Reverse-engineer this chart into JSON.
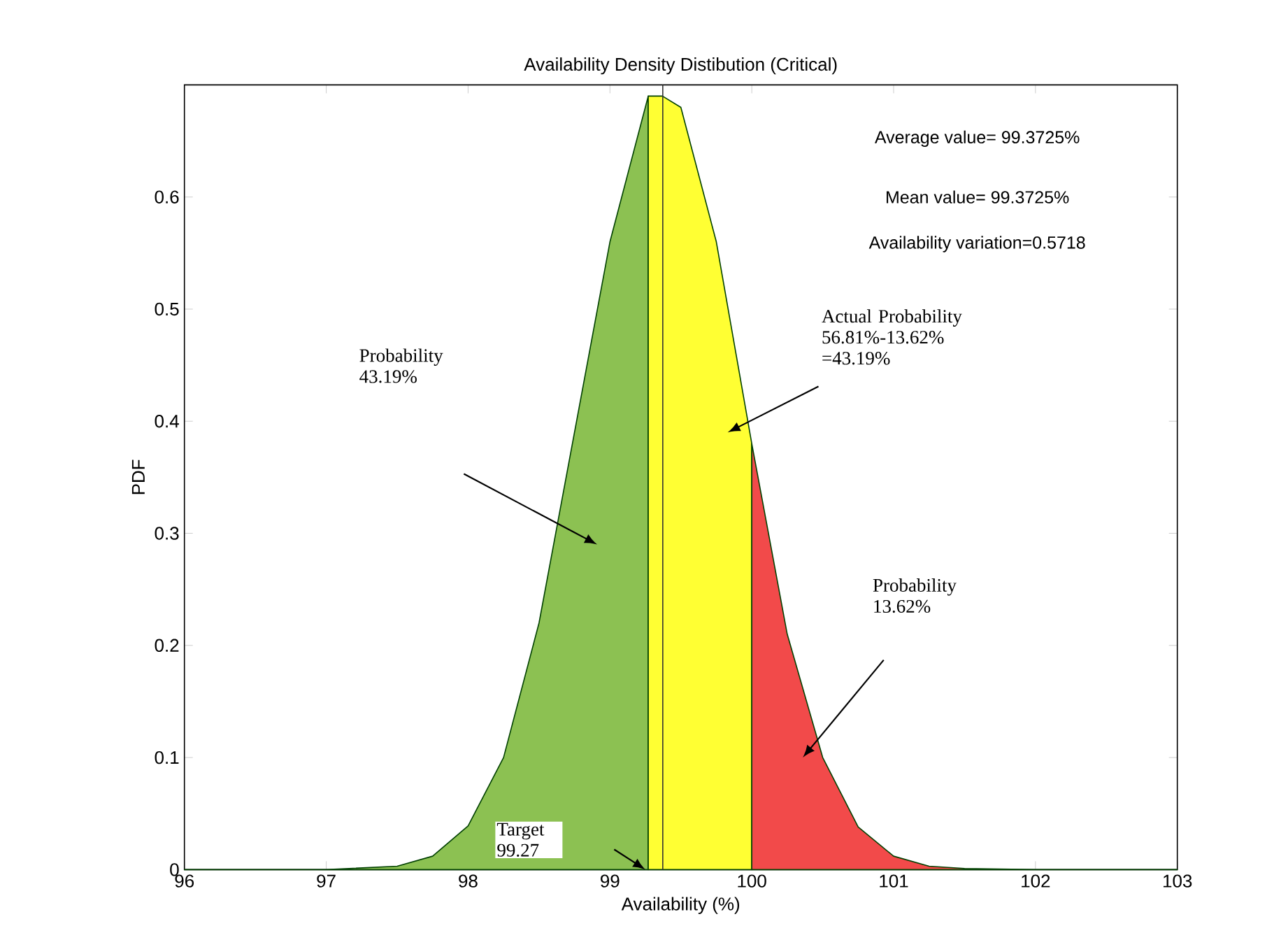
{
  "chart_data": {
    "type": "area",
    "title": "Availability Density Distibution (Critical)",
    "xlabel": "Availability (%)",
    "ylabel": "PDF",
    "xlim": [
      96,
      103
    ],
    "ylim": [
      0,
      0.7
    ],
    "xticks": [
      96,
      97,
      98,
      99,
      100,
      101,
      102,
      103
    ],
    "yticks": [
      0,
      0.1,
      0.2,
      0.3,
      0.4,
      0.5,
      0.6
    ],
    "grid": false,
    "series": [
      {
        "color": "#8cc152",
        "x": [
          96,
          97,
          97.5,
          97.75,
          98,
          98.25,
          98.5,
          98.75,
          99,
          99.27
        ],
        "values": [
          0,
          0,
          0.003,
          0.012,
          0.039,
          0.1,
          0.22,
          0.39,
          0.56,
          0.69
        ]
      },
      {
        "color": "#ffff33",
        "x": [
          99.27,
          99.37,
          99.5,
          99.75,
          100
        ],
        "values": [
          0.69,
          0.69,
          0.68,
          0.56,
          0.38
        ]
      },
      {
        "color": "#f24a4a",
        "x": [
          100,
          100.25,
          100.5,
          100.75,
          101,
          101.25,
          101.5,
          102,
          103
        ],
        "values": [
          0.38,
          0.21,
          0.1,
          0.038,
          0.012,
          0.003,
          0.001,
          0,
          0
        ]
      }
    ],
    "ref_lines": [
      {
        "axis": "x",
        "value": 99.3725,
        "color": "#333333"
      }
    ],
    "annotations": [
      "Average value= 99.3725%",
      "Mean value= 99.3725%",
      "Availability variation=0.5718",
      "Probability 43.19%",
      "Actual Probability 56.81%-13.62% =43.19%",
      "Probability 13.62%",
      "Target 99.27"
    ]
  }
}
